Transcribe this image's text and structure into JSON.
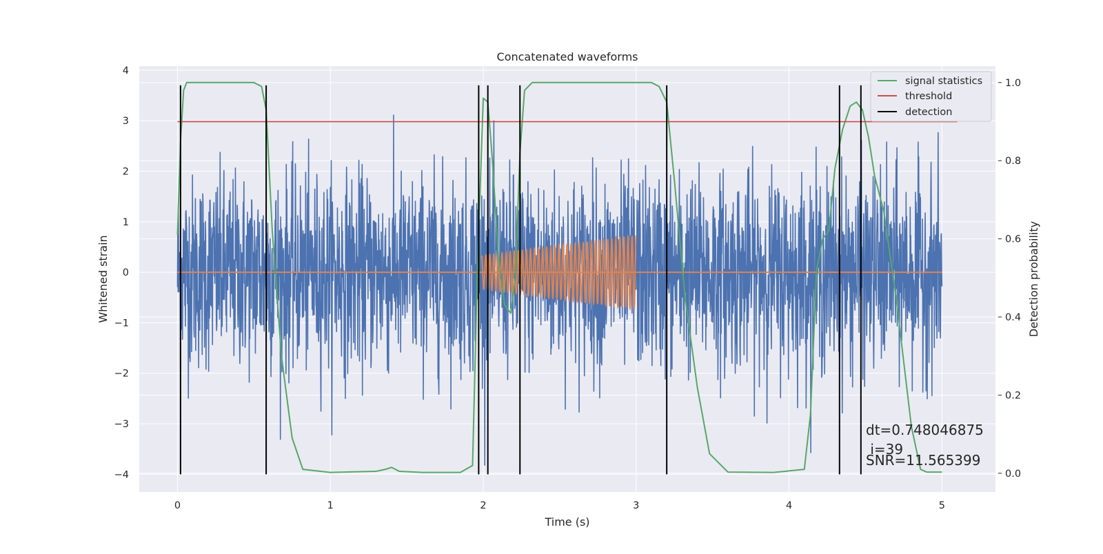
{
  "chart_data": {
    "type": "line",
    "title": "Concatenated waveforms",
    "xlabel": "Time (s)",
    "ylabel": "Whitened strain",
    "ylabel_right": "Detection probability",
    "xlim": [
      -0.25,
      5.35
    ],
    "ylim": [
      -4.35,
      4.08
    ],
    "ylim_right": [
      -0.048,
      1.042
    ],
    "x_ticks": [
      0,
      1,
      2,
      3,
      4,
      5
    ],
    "x_tick_labels": [
      "0",
      "1",
      "2",
      "3",
      "4",
      "5"
    ],
    "y_ticks": [
      -4,
      -3,
      -2,
      -1,
      0,
      1,
      2,
      3,
      4
    ],
    "y_tick_labels": [
      "−4",
      "−3",
      "−2",
      "−1",
      "0",
      "1",
      "2",
      "3",
      "4"
    ],
    "y_right_ticks": [
      0.0,
      0.2,
      0.4,
      0.6,
      0.8,
      1.0
    ],
    "y_right_tick_labels": [
      "0.0",
      "0.2",
      "0.4",
      "0.6",
      "0.8",
      "1.0"
    ],
    "grid": true,
    "legend_position": "top-right",
    "series": [
      {
        "name": "signal statistics",
        "axis": "right",
        "color": "#55a868",
        "x": [
          0.0,
          0.02,
          0.04,
          0.06,
          0.1,
          0.2,
          0.5,
          0.55,
          0.58,
          0.62,
          0.68,
          0.75,
          0.82,
          1.0,
          1.3,
          1.36,
          1.4,
          1.45,
          1.6,
          1.85,
          1.93,
          1.96,
          2.0,
          2.03,
          2.06,
          2.1,
          2.14,
          2.18,
          2.21,
          2.24,
          2.27,
          2.32,
          2.5,
          3.1,
          3.15,
          3.2,
          3.25,
          3.32,
          3.4,
          3.48,
          3.6,
          3.9,
          4.1,
          4.14,
          4.18,
          4.22,
          4.26,
          4.3,
          4.35,
          4.4,
          4.44,
          4.48,
          4.52,
          4.56,
          4.62,
          4.7,
          4.8,
          4.86,
          4.9,
          5.0
        ],
        "values": [
          0.61,
          0.85,
          0.98,
          1.0,
          1.0,
          1.0,
          1.0,
          0.99,
          0.93,
          0.62,
          0.3,
          0.09,
          0.01,
          0.002,
          0.005,
          0.01,
          0.015,
          0.005,
          0.002,
          0.002,
          0.02,
          0.5,
          0.96,
          0.95,
          0.8,
          0.55,
          0.43,
          0.41,
          0.5,
          0.82,
          0.98,
          1.0,
          1.0,
          1.0,
          0.99,
          0.95,
          0.75,
          0.45,
          0.22,
          0.05,
          0.003,
          0.002,
          0.01,
          0.15,
          0.52,
          0.6,
          0.62,
          0.78,
          0.88,
          0.94,
          0.95,
          0.93,
          0.86,
          0.76,
          0.67,
          0.45,
          0.12,
          0.01,
          0.003,
          0.003
        ]
      },
      {
        "name": "threshold",
        "axis": "right",
        "color": "#c44e52",
        "x": [
          0.0,
          5.1
        ],
        "values": [
          0.9,
          0.9
        ]
      },
      {
        "name": "detection",
        "axis": "left",
        "color": "#000000",
        "x": [
          0.02,
          0.58,
          1.97,
          2.03,
          2.24,
          3.2,
          4.33,
          4.47
        ],
        "ymin": -4.0,
        "ymax": 3.7
      }
    ],
    "noise": {
      "color": "#4c72b0",
      "x_range": [
        0.0,
        5.0
      ],
      "std": 0.95,
      "min": -4.0,
      "max": 3.32
    },
    "injected_signal": {
      "color": "#dd8452",
      "x_range": [
        1.99,
        3.0
      ],
      "amplitude_start": 0.33,
      "amplitude_end": 0.73,
      "cycles": 38,
      "baseline_x_range": [
        0.0,
        5.0
      ],
      "baseline_value": 0.0
    },
    "annotations": [
      "dt=0.748046875",
      " i=39",
      "SNR=11.565399"
    ]
  }
}
